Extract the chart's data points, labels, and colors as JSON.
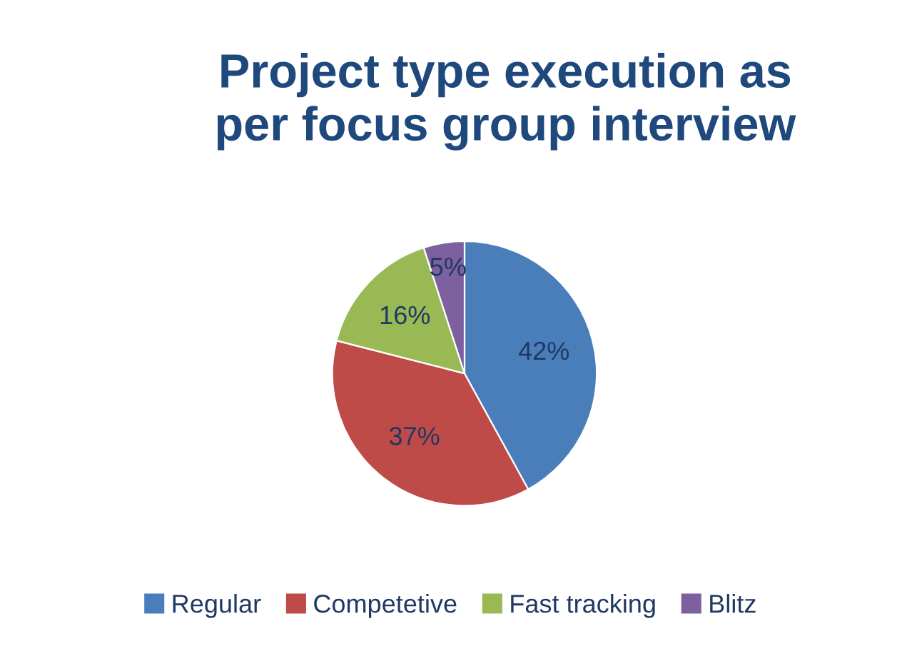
{
  "chart_data": {
    "type": "pie",
    "title": "Project type execution as\nper focus group interview",
    "categories": [
      "Regular",
      "Competetive",
      "Fast tracking",
      "Blitz"
    ],
    "values": [
      42,
      37,
      16,
      5
    ],
    "value_labels": [
      "42%",
      "37%",
      "16%",
      "5%"
    ],
    "colors": [
      "#4a7ebb",
      "#be4b48",
      "#98b954",
      "#7d60a0"
    ],
    "legend": "bottom"
  }
}
